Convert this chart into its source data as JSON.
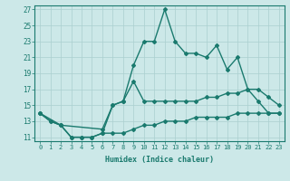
{
  "xlabel": "Humidex (Indice chaleur)",
  "background_color": "#cce8e8",
  "grid_color": "#aacfcf",
  "line_color": "#1a7a6e",
  "xlim": [
    -0.5,
    23.5
  ],
  "ylim": [
    10.5,
    27.5
  ],
  "xticks": [
    0,
    1,
    2,
    3,
    4,
    5,
    6,
    7,
    8,
    9,
    10,
    11,
    12,
    13,
    14,
    15,
    16,
    17,
    18,
    19,
    20,
    21,
    22,
    23
  ],
  "yticks": [
    11,
    13,
    15,
    17,
    19,
    21,
    23,
    25,
    27
  ],
  "line1_x": [
    0,
    1,
    2,
    3,
    4,
    5,
    6,
    7,
    8,
    9,
    10,
    11,
    12,
    13,
    14,
    15,
    16,
    17,
    18,
    19,
    20,
    21,
    22,
    23
  ],
  "line1_y": [
    14,
    13,
    12.5,
    11,
    11,
    11,
    11.5,
    15,
    15.5,
    20,
    23,
    23,
    27,
    23,
    21.5,
    21.5,
    21,
    22.5,
    19.5,
    21,
    17,
    15.5,
    14,
    14
  ],
  "line2_x": [
    0,
    2,
    6,
    7,
    8,
    9,
    10,
    11,
    12,
    13,
    14,
    15,
    16,
    17,
    18,
    19,
    20,
    21,
    22,
    23
  ],
  "line2_y": [
    14,
    12.5,
    12,
    15,
    15.5,
    18,
    15.5,
    15.5,
    15.5,
    15.5,
    15.5,
    15.5,
    16,
    16,
    16.5,
    16.5,
    17,
    17,
    16,
    15
  ],
  "line3_x": [
    0,
    1,
    2,
    3,
    4,
    5,
    6,
    7,
    8,
    9,
    10,
    11,
    12,
    13,
    14,
    15,
    16,
    17,
    18,
    19,
    20,
    21,
    22,
    23
  ],
  "line3_y": [
    14,
    13,
    12.5,
    11,
    11,
    11,
    11.5,
    11.5,
    11.5,
    12,
    12.5,
    12.5,
    13,
    13,
    13,
    13.5,
    13.5,
    13.5,
    13.5,
    14,
    14,
    14,
    14,
    14
  ]
}
